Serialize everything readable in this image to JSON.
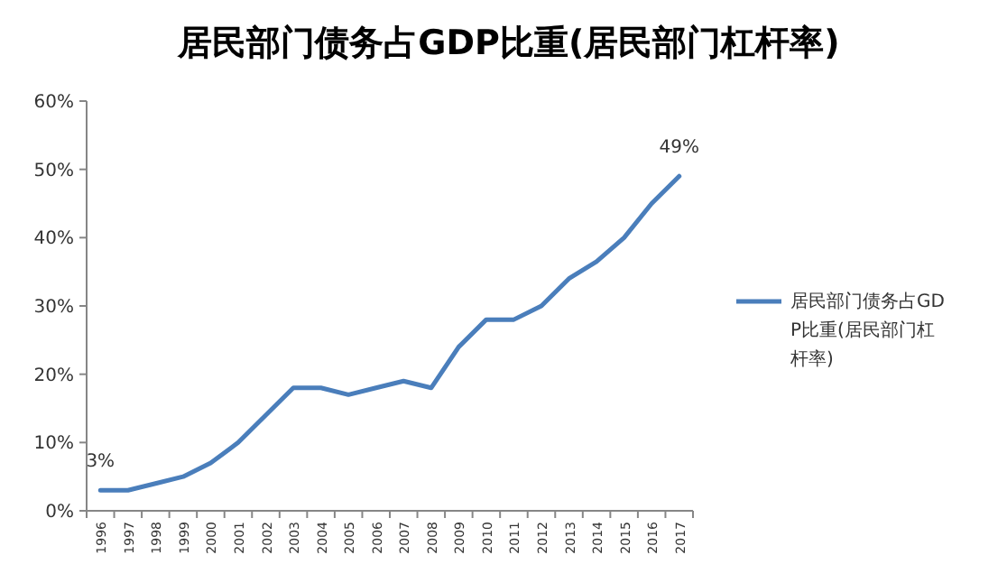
{
  "chart_data": {
    "type": "line",
    "title": "居民部门债务占GDP比重(居民部门杠杆率)",
    "categories": [
      "1996",
      "1997",
      "1998",
      "1999",
      "2000",
      "2001",
      "2002",
      "2003",
      "2004",
      "2005",
      "2006",
      "2007",
      "2008",
      "2009",
      "2010",
      "2011",
      "2012",
      "2013",
      "2014",
      "2015",
      "2016",
      "2017"
    ],
    "series": [
      {
        "name": "居民部门债务占GDP比重(居民部门杠杆率)",
        "color": "#4a7ebb",
        "values": [
          3,
          3,
          4,
          5,
          7,
          10,
          14,
          18,
          18,
          17,
          18,
          19,
          18,
          24,
          28,
          28,
          30,
          34,
          36.5,
          40,
          45,
          49
        ],
        "value_labels": [
          "3%",
          null,
          null,
          null,
          null,
          null,
          null,
          null,
          null,
          null,
          null,
          null,
          null,
          null,
          null,
          null,
          null,
          null,
          null,
          null,
          null,
          "49%"
        ]
      }
    ],
    "ylim": [
      0,
      60
    ],
    "yticks": [
      {
        "value": 0,
        "label": "0%"
      },
      {
        "value": 10,
        "label": "10%"
      },
      {
        "value": 20,
        "label": "20%"
      },
      {
        "value": 30,
        "label": "30%"
      },
      {
        "value": 40,
        "label": "40%"
      },
      {
        "value": 50,
        "label": "50%"
      },
      {
        "value": 60,
        "label": "60%"
      }
    ],
    "legend": "right",
    "line_style": "solid",
    "marker": "none"
  }
}
